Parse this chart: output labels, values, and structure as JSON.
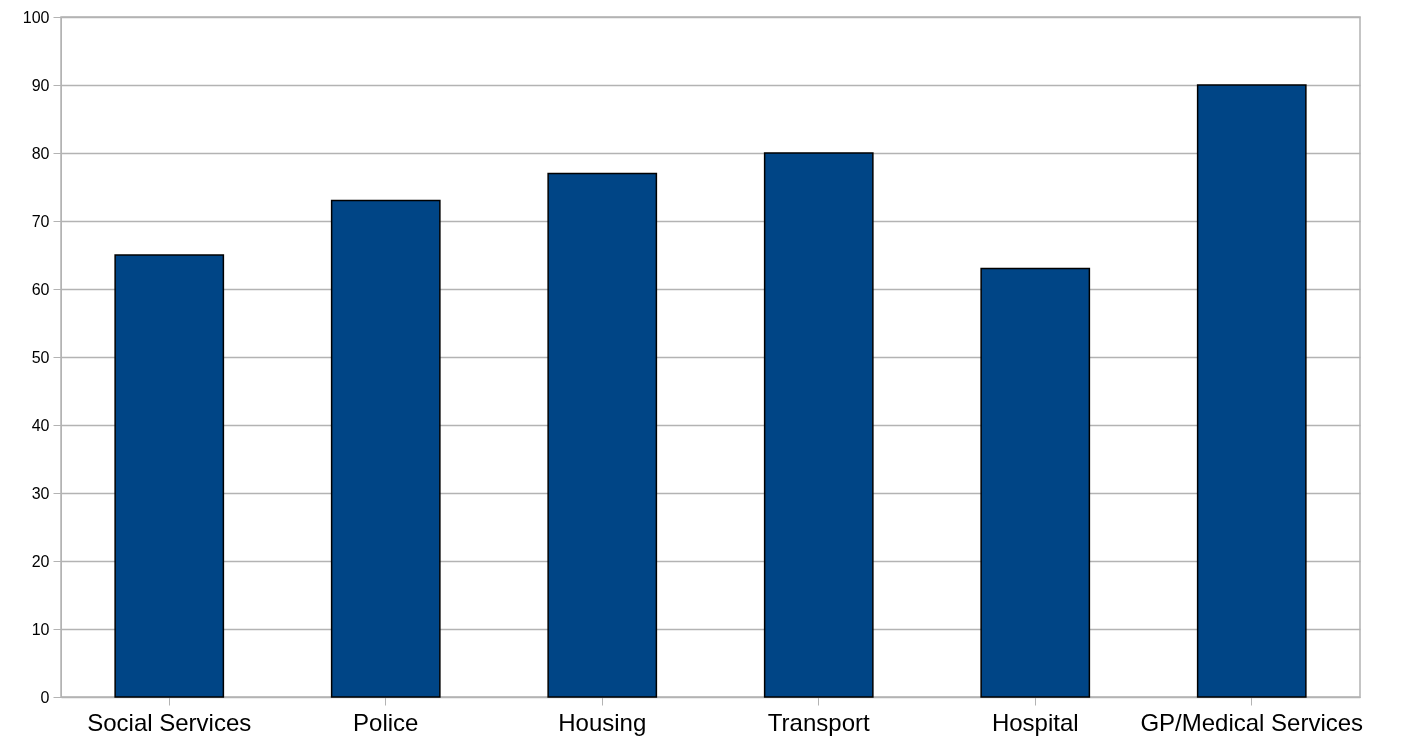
{
  "chart_data": {
    "type": "bar",
    "categories": [
      "Social Services",
      "Police",
      "Housing",
      "Transport",
      "Hospital",
      "GP/Medical Services"
    ],
    "values": [
      65,
      73,
      77,
      80,
      63,
      90
    ],
    "color": "#004586",
    "ylim": [
      0,
      100
    ],
    "yticks": [
      0,
      10,
      20,
      30,
      40,
      50,
      60,
      70,
      80,
      90,
      100
    ],
    "grid": "y"
  }
}
